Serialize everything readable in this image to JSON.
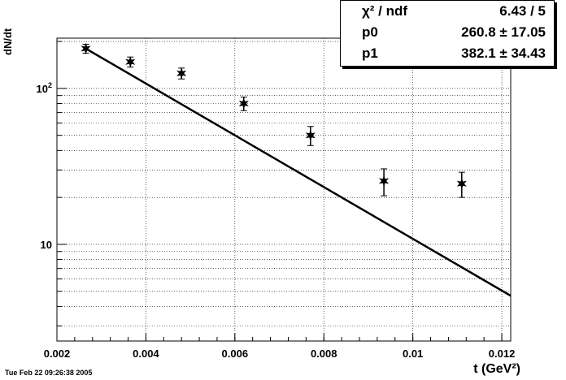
{
  "stats": {
    "rows": [
      {
        "key": "χ² / ndf",
        "value": "6.43 / 5"
      },
      {
        "key": "p0",
        "value": "260.8 ± 17.05"
      },
      {
        "key": "p1",
        "value": "382.1 ± 34.43"
      }
    ]
  },
  "timestamp": "Tue Feb 22 09:26:38 2005",
  "axes": {
    "xlabel": "t (GeV²)",
    "ylabel": "dN/dt"
  },
  "chart_data": {
    "type": "scatter",
    "title": "",
    "xlabel": "t (GeV²)",
    "ylabel": "dN/dt",
    "xlim": [
      0.002,
      0.0122
    ],
    "ylim": [
      2.4,
      210
    ],
    "yscale": "log",
    "grid": true,
    "xticks": [
      "0.002",
      "0.004",
      "0.006",
      "0.008",
      "0.01",
      "0.012"
    ],
    "yticks": [
      "10",
      "10²"
    ],
    "series": [
      {
        "x": [
          0.00265,
          0.00365,
          0.0048,
          0.0062,
          0.0077,
          0.00935,
          0.0111
        ],
        "y": [
          180,
          148,
          125,
          80,
          50,
          25.5,
          24.5
        ],
        "yerr": [
          12,
          11,
          10,
          8,
          7,
          5,
          4.5
        ]
      }
    ],
    "fit": {
      "p0": 260.8,
      "p1": 382.1,
      "x_range": [
        0.00265,
        0.0122
      ]
    }
  }
}
